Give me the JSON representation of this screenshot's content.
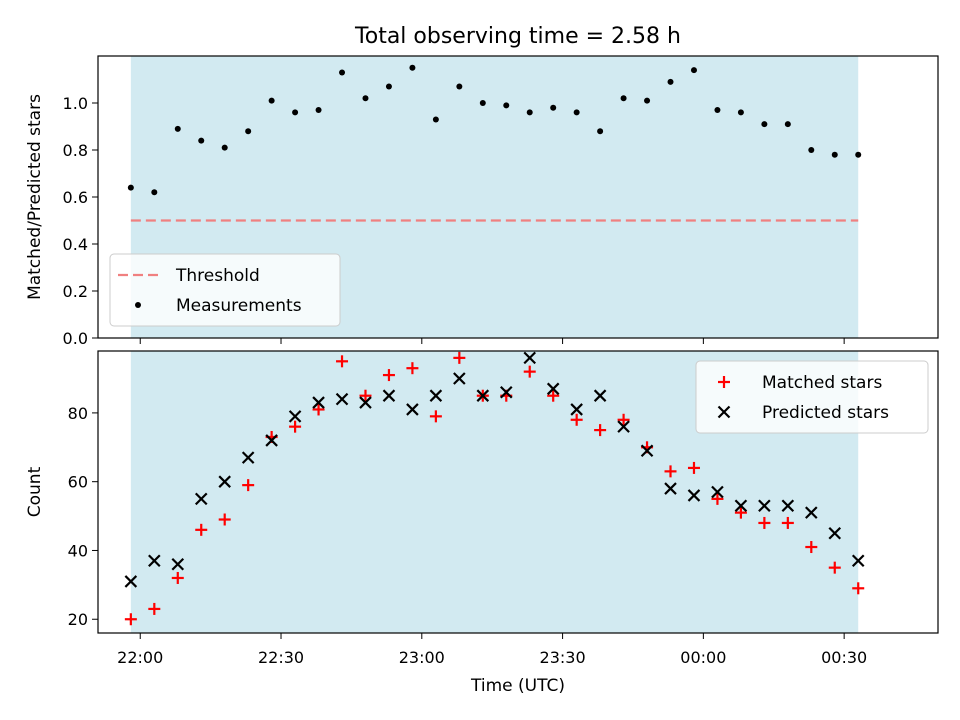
{
  "chart_data": {
    "title": "Total observing time = 2.58 h",
    "xlabel": "Time (UTC)",
    "x_tick_labels": [
      "22:00",
      "22:30",
      "23:00",
      "23:30",
      "00:00",
      "00:30"
    ],
    "x_ticks": [
      "22:00",
      "22:30",
      "23:00",
      "23:30",
      "00:00",
      "00:30"
    ],
    "x_range": [
      "21:51",
      "00:50"
    ],
    "shaded_region": [
      "21:58",
      "00:33"
    ],
    "colors": {
      "shade": "#add8e6",
      "threshold": "#f08080",
      "measurements": "#000000",
      "matched": "#ff0000",
      "predicted": "#000000"
    },
    "panels": [
      {
        "type": "scatter",
        "ylabel": "Matched/Predicted stars",
        "ylim": [
          0.0,
          1.2
        ],
        "yticks": [
          "0.0",
          "0.2",
          "0.4",
          "0.6",
          "0.8",
          "1.0"
        ],
        "ytick_values": [
          0.0,
          0.2,
          0.4,
          0.6,
          0.8,
          1.0
        ],
        "legend_position": "lower-left",
        "threshold": {
          "name": "Threshold",
          "value": 0.5,
          "style": "dashed"
        },
        "series": [
          {
            "name": "Measurements",
            "marker": "dot",
            "x": [
              "21:58",
              "22:03",
              "22:08",
              "22:13",
              "22:18",
              "22:23",
              "22:28",
              "22:33",
              "22:38",
              "22:43",
              "22:48",
              "22:53",
              "22:58",
              "23:03",
              "23:08",
              "23:13",
              "23:18",
              "23:23",
              "23:28",
              "23:33",
              "23:38",
              "23:43",
              "23:48",
              "23:53",
              "23:58",
              "00:03",
              "00:08",
              "00:13",
              "00:18",
              "00:23",
              "00:28",
              "00:33"
            ],
            "y": [
              0.64,
              0.62,
              0.89,
              0.84,
              0.81,
              0.88,
              1.01,
              0.96,
              0.97,
              1.13,
              1.02,
              1.07,
              1.15,
              0.93,
              1.07,
              1.0,
              0.99,
              0.96,
              0.98,
              0.96,
              0.88,
              1.02,
              1.01,
              1.09,
              1.14,
              0.97,
              0.96,
              0.91,
              0.91,
              0.8,
              0.78,
              0.78
            ]
          }
        ]
      },
      {
        "type": "scatter",
        "ylabel": "Count",
        "ylim": [
          16.0,
          98.0
        ],
        "yticks": [
          "20",
          "40",
          "60",
          "80"
        ],
        "ytick_values": [
          20,
          40,
          60,
          80
        ],
        "legend_position": "upper-right",
        "series": [
          {
            "name": "Matched stars",
            "marker": "plus",
            "x": [
              "21:58",
              "22:03",
              "22:08",
              "22:13",
              "22:18",
              "22:23",
              "22:28",
              "22:33",
              "22:38",
              "22:43",
              "22:48",
              "22:53",
              "22:58",
              "23:03",
              "23:08",
              "23:13",
              "23:18",
              "23:23",
              "23:28",
              "23:33",
              "23:38",
              "23:43",
              "23:48",
              "23:53",
              "23:58",
              "00:03",
              "00:08",
              "00:13",
              "00:18",
              "00:23",
              "00:28",
              "00:33"
            ],
            "y": [
              20,
              23,
              32,
              46,
              49,
              59,
              73,
              76,
              81,
              95,
              85,
              91,
              93,
              79,
              96,
              85,
              85,
              92,
              85,
              78,
              75,
              78,
              70,
              63,
              64,
              55,
              51,
              48,
              48,
              41,
              35,
              29
            ]
          },
          {
            "name": "Predicted stars",
            "marker": "x",
            "x": [
              "21:58",
              "22:03",
              "22:08",
              "22:13",
              "22:18",
              "22:23",
              "22:28",
              "22:33",
              "22:38",
              "22:43",
              "22:48",
              "22:53",
              "22:58",
              "23:03",
              "23:08",
              "23:13",
              "23:18",
              "23:23",
              "23:28",
              "23:33",
              "23:38",
              "23:43",
              "23:48",
              "23:53",
              "23:58",
              "00:03",
              "00:08",
              "00:13",
              "00:18",
              "00:23",
              "00:28",
              "00:33"
            ],
            "y": [
              31,
              37,
              36,
              55,
              60,
              67,
              72,
              79,
              83,
              84,
              83,
              85,
              81,
              85,
              90,
              85,
              86,
              96,
              87,
              81,
              85,
              76,
              69,
              58,
              56,
              57,
              53,
              53,
              53,
              51,
              45,
              37
            ]
          }
        ]
      }
    ]
  }
}
